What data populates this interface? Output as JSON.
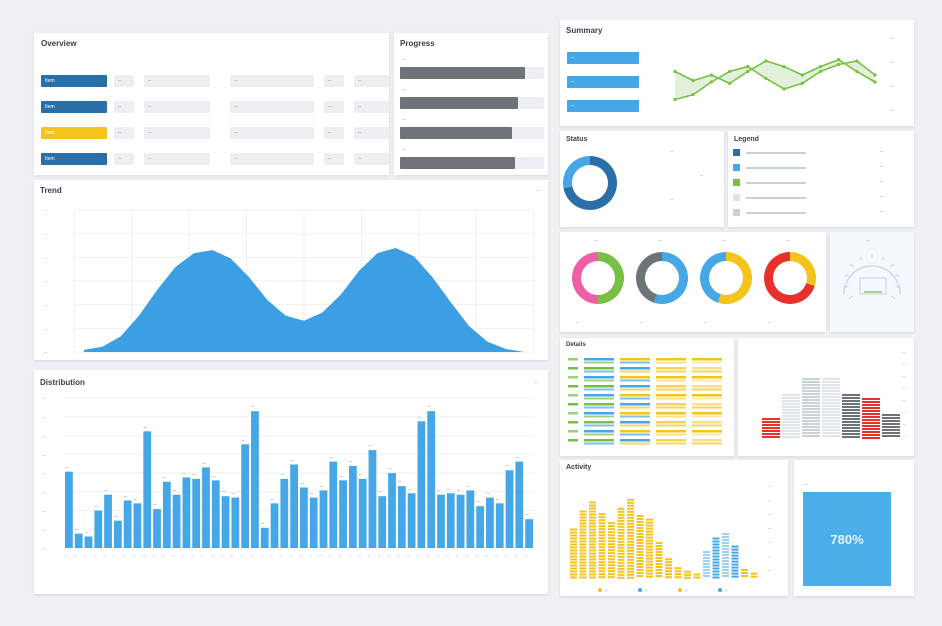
{
  "colors": {
    "blue": "#46a7e6",
    "darkblue": "#2b6fa8",
    "yellow": "#f4c31c",
    "green": "#77c043",
    "red": "#e8312b",
    "pink": "#ee5fa8",
    "grey": "#6d7378",
    "lightgrey": "#eceef1"
  },
  "panel_table": {
    "title": "Overview",
    "rows": [
      {
        "chip": "Item",
        "cells": [
          "--",
          "--",
          "--",
          "--",
          "--"
        ],
        "color": "#2b6fa8"
      },
      {
        "chip": "Item",
        "cells": [
          "--",
          "--",
          "--",
          "--",
          "--"
        ],
        "color": "#2b6fa8"
      },
      {
        "chip": "Item",
        "cells": [
          "--",
          "--",
          "--",
          "--",
          "--"
        ],
        "color": "#f4c31c"
      },
      {
        "chip": "Item",
        "cells": [
          "--",
          "--",
          "--",
          "--",
          "--"
        ],
        "color": "#2b6fa8"
      }
    ]
  },
  "panel_progress": {
    "title": "Progress",
    "rows": [
      {
        "label": "--",
        "value": 0.87
      },
      {
        "label": "--",
        "value": 0.82
      },
      {
        "label": "--",
        "value": 0.78
      },
      {
        "label": "--",
        "value": 0.8
      }
    ]
  },
  "panel_kpi_line": {
    "title": "Summary",
    "chips": [
      "--",
      "--",
      "--"
    ],
    "right_labels": [
      "--",
      "--",
      "--",
      "--"
    ],
    "series_a": [
      0.55,
      0.42,
      0.5,
      0.38,
      0.55,
      0.7,
      0.62,
      0.5,
      0.62,
      0.72,
      0.55,
      0.4
    ],
    "series_b": [
      0.15,
      0.22,
      0.4,
      0.55,
      0.62,
      0.45,
      0.3,
      0.38,
      0.55,
      0.65,
      0.7,
      0.5
    ]
  },
  "panel_area": {
    "title": "Trend",
    "corner": "--",
    "values": [
      0.02,
      0.05,
      0.15,
      0.35,
      0.6,
      0.82,
      0.95,
      0.98,
      0.9,
      0.72,
      0.5,
      0.35,
      0.3,
      0.38,
      0.55,
      0.78,
      0.95,
      1.0,
      0.92,
      0.72,
      0.48,
      0.25,
      0.1,
      0.03,
      0.0
    ]
  },
  "panel_bars": {
    "title": "Distribution",
    "legend": "--",
    "values": [
      0.53,
      0.1,
      0.08,
      0.26,
      0.37,
      0.19,
      0.33,
      0.31,
      0.81,
      0.27,
      0.46,
      0.37,
      0.49,
      0.48,
      0.56,
      0.47,
      0.36,
      0.35,
      0.72,
      0.95,
      0.14,
      0.31,
      0.48,
      0.58,
      0.42,
      0.35,
      0.4,
      0.6,
      0.47,
      0.57,
      0.48,
      0.68,
      0.36,
      0.52,
      0.43,
      0.38,
      0.88,
      0.95,
      0.37,
      0.38,
      0.37,
      0.4,
      0.29,
      0.35,
      0.31,
      0.54,
      0.6,
      0.2
    ]
  },
  "panel_donut_blue": {
    "title": "Status",
    "labels": [
      "--",
      "--",
      "--"
    ]
  },
  "panel_legend_list": {
    "title": "Legend",
    "items": [
      {
        "color": "#2b6fa8",
        "text": "--"
      },
      {
        "color": "#46a7e6",
        "text": "--"
      },
      {
        "color": "#77c043",
        "text": "--"
      },
      {
        "color": "#d9e4ee",
        "text": "--"
      },
      {
        "color": "#c8d0d8",
        "text": "--"
      }
    ]
  },
  "panel_donuts": {
    "donuts": [
      {
        "colors": [
          "#77c043",
          "#ee5fa8"
        ],
        "split": 0.5
      },
      {
        "colors": [
          "#46a7e6",
          "#6d7378"
        ],
        "split": 0.55
      },
      {
        "colors": [
          "#f4c31c",
          "#46a7e6"
        ],
        "split": 0.55
      },
      {
        "colors": [
          "#f4c31c",
          "#e8312b"
        ],
        "split": 0.3
      }
    ]
  },
  "panel_gauge": {
    "title": "--"
  },
  "panel_heat": {
    "title": "Details"
  },
  "panel_stack": {
    "title": "--"
  },
  "panel_yellow": {
    "title": "Activity",
    "legend": [
      "--",
      "--",
      "--",
      "--"
    ]
  },
  "panel_big": {
    "title": "--",
    "value": "780%"
  }
}
